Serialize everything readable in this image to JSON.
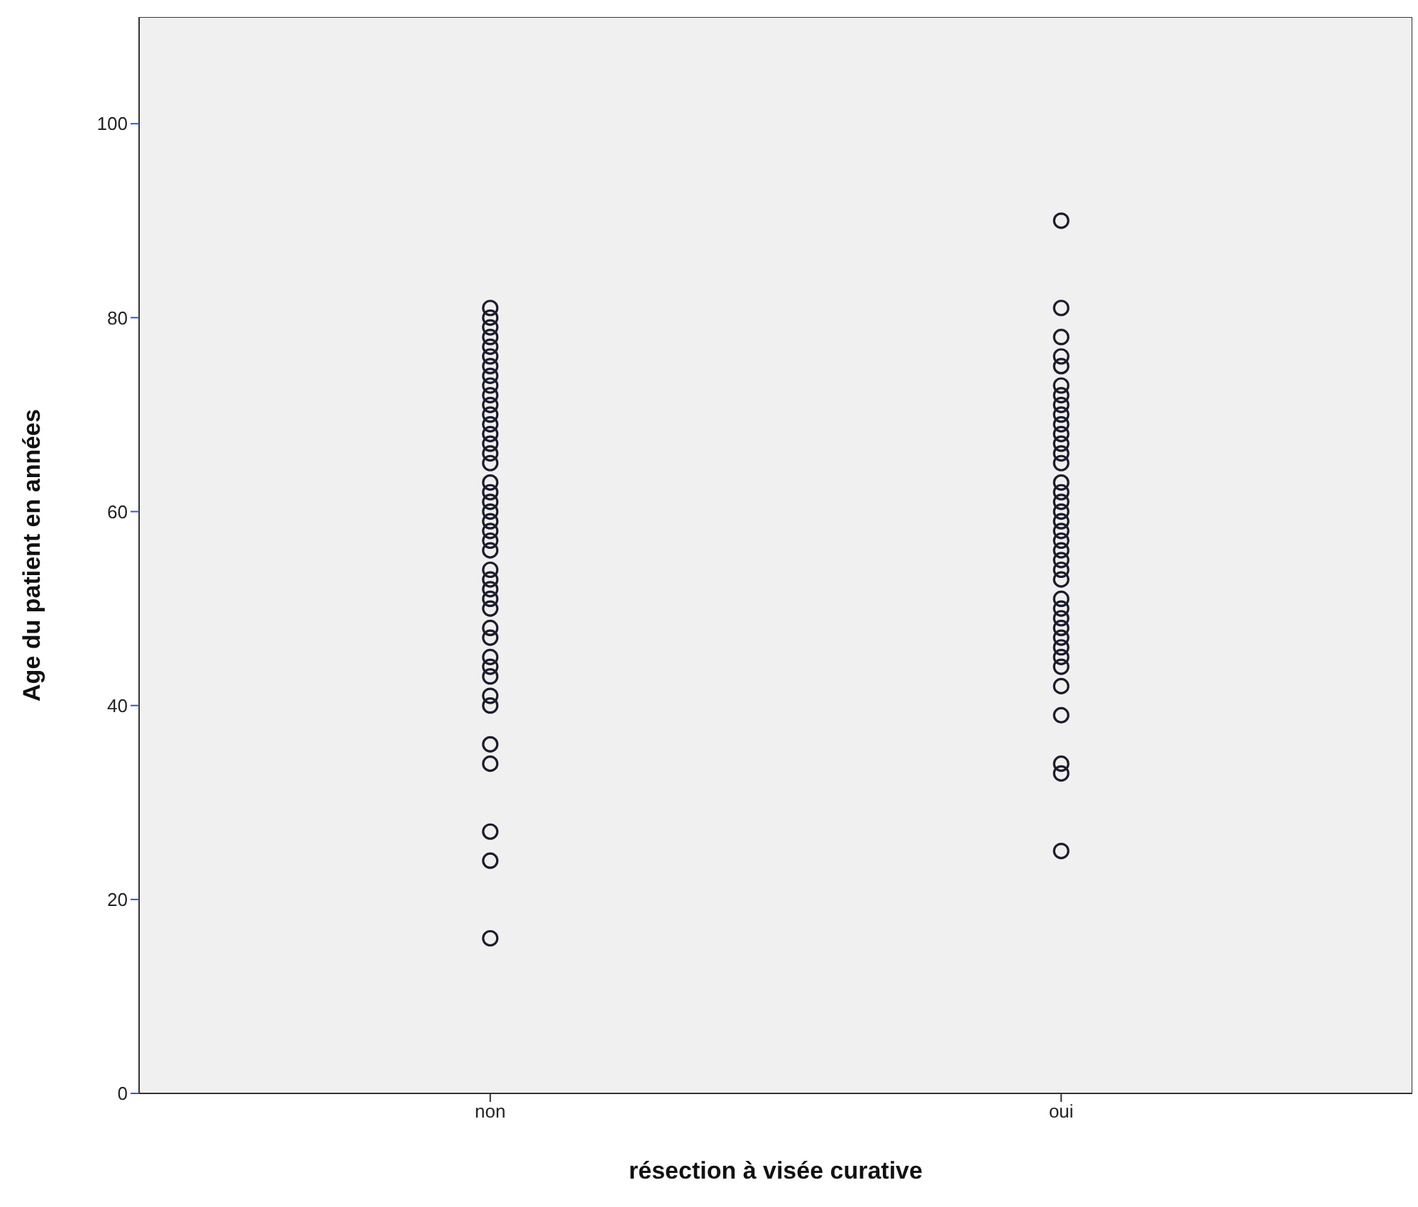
{
  "chart_data": {
    "type": "scatter",
    "xlabel": "résection à visée curative",
    "ylabel": "Age du patient en années",
    "categories": [
      "non",
      "oui"
    ],
    "series": [
      {
        "color": "#1c1c2c",
        "x": [
          "non",
          "non",
          "non",
          "non",
          "non",
          "non",
          "non",
          "non",
          "non",
          "non",
          "non",
          "non",
          "non",
          "non",
          "non",
          "non",
          "non",
          "non",
          "non",
          "non",
          "non",
          "non",
          "non",
          "non",
          "non",
          "non",
          "non",
          "non",
          "non",
          "non",
          "non",
          "non",
          "non",
          "non",
          "non",
          "non",
          "non",
          "non",
          "non",
          "non",
          "non",
          "non"
        ],
        "values": [
          81,
          80,
          79,
          78,
          77,
          76,
          75,
          74,
          73,
          72,
          71,
          70,
          69,
          68,
          67,
          66,
          65,
          63,
          62,
          61,
          60,
          59,
          58,
          57,
          56,
          54,
          53,
          52,
          51,
          50,
          48,
          47,
          45,
          44,
          43,
          41,
          40,
          36,
          34,
          27,
          24,
          16
        ]
      },
      {
        "color": "#1c1c2c",
        "x": [
          "oui",
          "oui",
          "oui",
          "oui",
          "oui",
          "oui",
          "oui",
          "oui",
          "oui",
          "oui",
          "oui",
          "oui",
          "oui",
          "oui",
          "oui",
          "oui",
          "oui",
          "oui",
          "oui",
          "oui",
          "oui",
          "oui",
          "oui",
          "oui",
          "oui",
          "oui",
          "oui",
          "oui",
          "oui",
          "oui",
          "oui",
          "oui",
          "oui",
          "oui",
          "oui",
          "oui",
          "oui",
          "oui"
        ],
        "values": [
          90,
          81,
          78,
          76,
          75,
          73,
          72,
          71,
          70,
          69,
          68,
          67,
          66,
          65,
          63,
          62,
          61,
          60,
          59,
          58,
          57,
          56,
          55,
          54,
          53,
          51,
          50,
          49,
          48,
          47,
          46,
          45,
          44,
          42,
          39,
          34,
          33,
          25
        ]
      }
    ],
    "ylim": [
      0,
      111
    ],
    "yticks": [
      0,
      20,
      40,
      60,
      80,
      100
    ],
    "grid": false,
    "legend": false,
    "marker": "circle"
  }
}
